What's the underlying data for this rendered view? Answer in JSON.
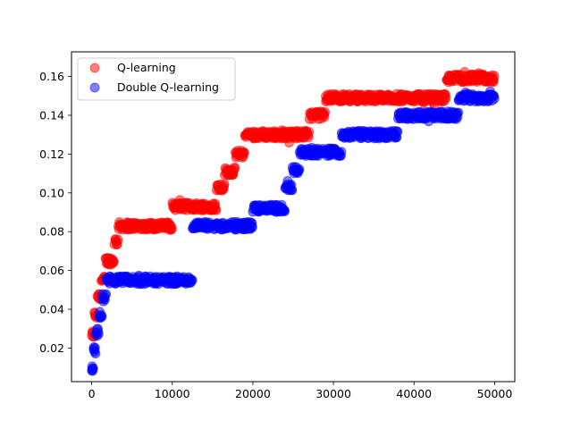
{
  "chart_data": {
    "type": "scatter",
    "title": "",
    "xlabel": "",
    "ylabel": "",
    "xlim": [
      -2500,
      52500
    ],
    "ylim": [
      0.0027,
      0.1727
    ],
    "grid": false,
    "legend_position": "upper-left",
    "x_ticks": [
      {
        "value": 0,
        "label": "0"
      },
      {
        "value": 10000,
        "label": "10000"
      },
      {
        "value": 20000,
        "label": "20000"
      },
      {
        "value": 30000,
        "label": "30000"
      },
      {
        "value": 40000,
        "label": "40000"
      },
      {
        "value": 50000,
        "label": "50000"
      }
    ],
    "y_ticks": [
      {
        "value": 0.02,
        "label": "0.02"
      },
      {
        "value": 0.04,
        "label": "0.04"
      },
      {
        "value": 0.06,
        "label": "0.06"
      },
      {
        "value": 0.08,
        "label": "0.08"
      },
      {
        "value": 0.1,
        "label": "0.10"
      },
      {
        "value": 0.12,
        "label": "0.12"
      },
      {
        "value": 0.14,
        "label": "0.14"
      },
      {
        "value": 0.16,
        "label": "0.16"
      }
    ],
    "series": [
      {
        "name": "Q-learning",
        "color": "#ff0000",
        "levels": [
          {
            "x0": 0,
            "x1": 300,
            "y": 0.027
          },
          {
            "x0": 300,
            "x1": 700,
            "y": 0.037
          },
          {
            "x0": 700,
            "x1": 1200,
            "y": 0.047
          },
          {
            "x0": 1200,
            "x1": 1700,
            "y": 0.055
          },
          {
            "x0": 1700,
            "x1": 2800,
            "y": 0.065
          },
          {
            "x0": 2800,
            "x1": 3300,
            "y": 0.075
          },
          {
            "x0": 3300,
            "x1": 10000,
            "y": 0.083
          },
          {
            "x0": 10000,
            "x1": 15500,
            "y": 0.093
          },
          {
            "x0": 15500,
            "x1": 16500,
            "y": 0.103
          },
          {
            "x0": 16500,
            "x1": 17800,
            "y": 0.111
          },
          {
            "x0": 17800,
            "x1": 19000,
            "y": 0.12
          },
          {
            "x0": 19000,
            "x1": 27000,
            "y": 0.13
          },
          {
            "x0": 27000,
            "x1": 29000,
            "y": 0.14
          },
          {
            "x0": 29000,
            "x1": 44000,
            "y": 0.149
          },
          {
            "x0": 44000,
            "x1": 50000,
            "y": 0.159
          }
        ]
      },
      {
        "name": "Double Q-learning",
        "color": "#0000ff",
        "levels": [
          {
            "x0": 0,
            "x1": 200,
            "y": 0.01
          },
          {
            "x0": 200,
            "x1": 500,
            "y": 0.019
          },
          {
            "x0": 500,
            "x1": 900,
            "y": 0.028
          },
          {
            "x0": 900,
            "x1": 1300,
            "y": 0.037
          },
          {
            "x0": 1300,
            "x1": 1800,
            "y": 0.046
          },
          {
            "x0": 1800,
            "x1": 12500,
            "y": 0.055
          },
          {
            "x0": 12500,
            "x1": 20000,
            "y": 0.083
          },
          {
            "x0": 20000,
            "x1": 24000,
            "y": 0.092
          },
          {
            "x0": 24000,
            "x1": 24900,
            "y": 0.103
          },
          {
            "x0": 24900,
            "x1": 25800,
            "y": 0.112
          },
          {
            "x0": 25800,
            "x1": 31000,
            "y": 0.121
          },
          {
            "x0": 31000,
            "x1": 38000,
            "y": 0.13
          },
          {
            "x0": 38000,
            "x1": 45500,
            "y": 0.14
          },
          {
            "x0": 45500,
            "x1": 50000,
            "y": 0.149
          }
        ]
      }
    ]
  }
}
